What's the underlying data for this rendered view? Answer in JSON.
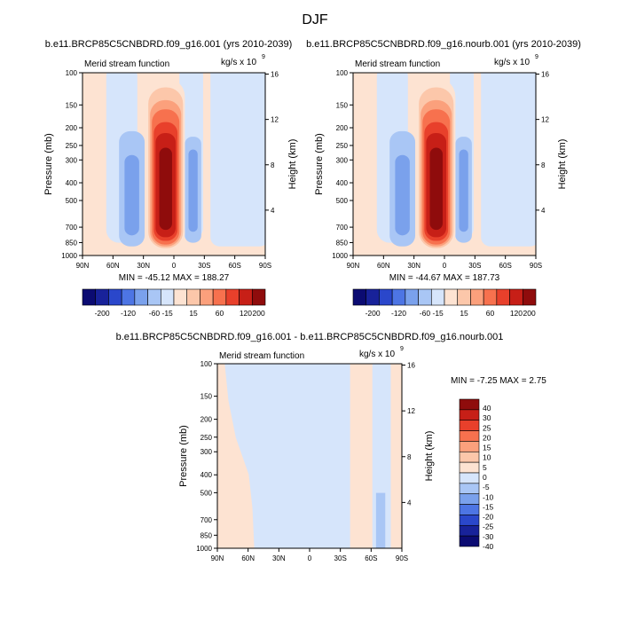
{
  "page": {
    "title": "DJF"
  },
  "colors": {
    "positive": [
      "#fde3d2",
      "#fcc7aa",
      "#fba07c",
      "#f7714e",
      "#e8402b",
      "#c71f17",
      "#8f0c0c"
    ],
    "negative": [
      "#d6e5fb",
      "#a9c6f5",
      "#7aa1ec",
      "#4d75e4",
      "#2a47cb",
      "#18229a",
      "#0b0b72"
    ],
    "frame": "#000000"
  },
  "chart_data": [
    {
      "id": "left",
      "type": "heatmap",
      "title": "b.e11.BRCP85C5CNBDRD.f09_g16.001 (yrs 2010-2039)",
      "inner_left_label": "Merid stream function",
      "inner_right_label": "kg/s x 10",
      "inner_right_exponent": "9",
      "xlabel": "",
      "ylabel": "Pressure (mb)",
      "ylabel_right": "Height (km)",
      "x_ticks": [
        "90N",
        "60N",
        "30N",
        "0",
        "30S",
        "60S",
        "90S"
      ],
      "y_ticks": [
        "100",
        "150",
        "200",
        "250",
        "300",
        "400",
        "500",
        "700",
        "850",
        "1000"
      ],
      "y_right_ticks": [
        "16",
        "12",
        "8",
        "4"
      ],
      "stats": "MIN = -45.12  MAX = 188.27",
      "min": -45.12,
      "max": 188.27,
      "colorbar_labels": [
        "-200",
        "-120",
        "-60",
        "-15",
        "15",
        "60",
        "120",
        "200"
      ]
    },
    {
      "id": "right",
      "type": "heatmap",
      "title": "b.e11.BRCP85C5CNBDRD.f09_g16.nourb.001 (yrs 2010-2039)",
      "inner_left_label": "Merid stream function",
      "inner_right_label": "kg/s x 10",
      "inner_right_exponent": "9",
      "xlabel": "",
      "ylabel": "Pressure (mb)",
      "ylabel_right": "Height (km)",
      "x_ticks": [
        "90N",
        "60N",
        "30N",
        "0",
        "30S",
        "60S",
        "90S"
      ],
      "y_ticks": [
        "100",
        "150",
        "200",
        "250",
        "300",
        "400",
        "500",
        "700",
        "850",
        "1000"
      ],
      "y_right_ticks": [
        "16",
        "12",
        "8",
        "4"
      ],
      "stats": "MIN = -44.67  MAX = 187.73",
      "min": -44.67,
      "max": 187.73,
      "colorbar_labels": [
        "-200",
        "-120",
        "-60",
        "-15",
        "15",
        "60",
        "120",
        "200"
      ]
    },
    {
      "id": "diff",
      "type": "heatmap",
      "title": "b.e11.BRCP85C5CNBDRD.f09_g16.001 - b.e11.BRCP85C5CNBDRD.f09_g16.nourb.001",
      "inner_left_label": "Merid stream function",
      "inner_right_label": "kg/s x 10",
      "inner_right_exponent": "9",
      "xlabel": "",
      "ylabel": "Pressure (mb)",
      "ylabel_right": "Height (km)",
      "x_ticks": [
        "90N",
        "60N",
        "30N",
        "0",
        "30S",
        "60S",
        "90S"
      ],
      "y_ticks": [
        "100",
        "150",
        "200",
        "250",
        "300",
        "400",
        "500",
        "700",
        "850",
        "1000"
      ],
      "y_right_ticks": [
        "16",
        "12",
        "8",
        "4"
      ],
      "stats": "MIN = -7.25  MAX =  2.75",
      "min": -7.25,
      "max": 2.75,
      "colorbar_labels": [
        "40",
        "30",
        "25",
        "20",
        "15",
        "10",
        "5",
        "0",
        "-5",
        "-10",
        "-15",
        "-20",
        "-25",
        "-30",
        "-40"
      ]
    }
  ]
}
